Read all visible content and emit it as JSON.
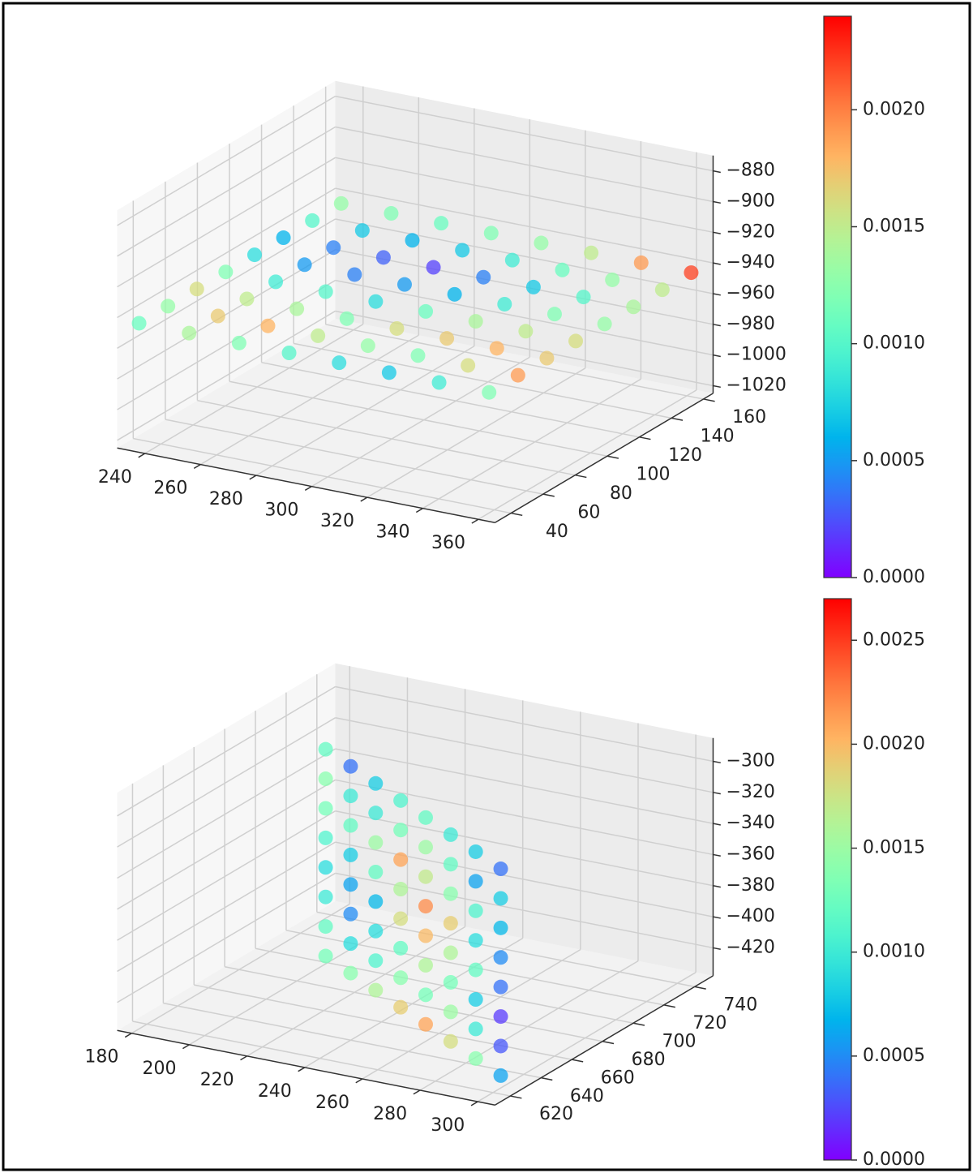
{
  "chart_data": [
    {
      "type": "scatter3d",
      "colormap": "rainbow",
      "xlim": [
        230,
        366
      ],
      "ylim": [
        30,
        166
      ],
      "zlim": [
        -1025,
        -870
      ],
      "xticks": [
        240,
        260,
        280,
        300,
        320,
        340,
        360
      ],
      "yticks": [
        40,
        60,
        80,
        100,
        120,
        140,
        160
      ],
      "zticks": [
        {
          "value": -880,
          "label": "−880"
        },
        {
          "value": -900,
          "label": "−900"
        },
        {
          "value": -920,
          "label": "−920"
        },
        {
          "value": -940,
          "label": "−940"
        },
        {
          "value": -960,
          "label": "−960"
        },
        {
          "value": -980,
          "label": "−980"
        },
        {
          "value": -1000,
          "label": "−1000"
        },
        {
          "value": -1020,
          "label": "−1020"
        }
      ],
      "clim": [
        0,
        0.0024
      ],
      "cticks": [
        {
          "value": 0,
          "label": "0.0000"
        },
        {
          "value": 0.0005,
          "label": "0.0005"
        },
        {
          "value": 0.001,
          "label": "0.0010"
        },
        {
          "value": 0.0015,
          "label": "0.0015"
        },
        {
          "value": 0.002,
          "label": "0.0020"
        }
      ],
      "x": [
        235,
        235,
        235,
        235,
        235,
        235,
        235,
        235,
        253,
        253,
        253,
        253,
        253,
        253,
        253,
        253,
        271,
        271,
        271,
        271,
        271,
        271,
        271,
        271,
        289,
        289,
        289,
        289,
        289,
        289,
        289,
        289,
        307,
        307,
        307,
        307,
        307,
        307,
        307,
        307,
        325,
        325,
        325,
        325,
        325,
        325,
        325,
        325,
        343,
        343,
        343,
        343,
        343,
        343,
        343,
        343,
        361,
        361,
        361,
        361,
        361,
        361,
        361,
        361
      ],
      "y": [
        35,
        53,
        71,
        89,
        107,
        125,
        143,
        161,
        35,
        53,
        71,
        89,
        107,
        125,
        143,
        161,
        35,
        53,
        71,
        89,
        107,
        125,
        143,
        161,
        35,
        53,
        71,
        89,
        107,
        125,
        143,
        161,
        35,
        53,
        71,
        89,
        107,
        125,
        143,
        161,
        35,
        53,
        71,
        89,
        107,
        125,
        143,
        161,
        35,
        53,
        71,
        89,
        107,
        125,
        143,
        161,
        35,
        53,
        71,
        89,
        107,
        125,
        143,
        161
      ],
      "z": [
        -945,
        -945,
        -945,
        -945,
        -945,
        -945,
        -945,
        -945,
        -945,
        -945,
        -945,
        -945,
        -945,
        -945,
        -945,
        -945,
        -945,
        -945,
        -945,
        -945,
        -945,
        -945,
        -945,
        -945,
        -945,
        -945,
        -945,
        -945,
        -945,
        -945,
        -945,
        -945,
        -945,
        -945,
        -945,
        -945,
        -945,
        -945,
        -945,
        -945,
        -945,
        -945,
        -945,
        -945,
        -945,
        -945,
        -945,
        -945,
        -945,
        -945,
        -945,
        -945,
        -945,
        -945,
        -945,
        -945,
        -945,
        -945,
        -945,
        -945,
        -945,
        -945,
        -945,
        -945
      ],
      "c": [
        0.0011,
        0.0013,
        0.0016,
        0.0012,
        0.0008,
        0.0006,
        0.001,
        0.0013,
        0.0014,
        0.0017,
        0.0015,
        0.0009,
        0.0005,
        0.0004,
        0.0007,
        0.0012,
        0.0012,
        0.0018,
        0.0014,
        0.001,
        0.0004,
        0.0003,
        0.0006,
        0.0011,
        0.001,
        0.0015,
        0.0012,
        0.0008,
        0.0005,
        0.0002,
        0.0007,
        0.0012,
        0.0008,
        0.0013,
        0.0016,
        0.0011,
        0.0006,
        0.0004,
        0.0009,
        0.0013,
        0.0007,
        0.0012,
        0.0017,
        0.0014,
        0.0009,
        0.0007,
        0.0011,
        0.0015,
        0.0009,
        0.0016,
        0.0018,
        0.0015,
        0.0012,
        0.001,
        0.0013,
        0.0019,
        0.0012,
        0.0019,
        0.0017,
        0.0016,
        0.0013,
        0.0014,
        0.0015,
        0.0022
      ]
    },
    {
      "type": "scatter3d",
      "colormap": "rainbow",
      "xlim": [
        175,
        306
      ],
      "ylim": [
        610,
        752
      ],
      "zlim": [
        -438,
        -285
      ],
      "xticks": [
        180,
        200,
        220,
        240,
        260,
        280,
        300
      ],
      "yticks": [
        620,
        640,
        660,
        680,
        700,
        720,
        740
      ],
      "zticks": [
        {
          "value": -300,
          "label": "−300"
        },
        {
          "value": -320,
          "label": "−320"
        },
        {
          "value": -340,
          "label": "−340"
        },
        {
          "value": -360,
          "label": "−360"
        },
        {
          "value": -380,
          "label": "−380"
        },
        {
          "value": -400,
          "label": "−400"
        },
        {
          "value": -420,
          "label": "−420"
        }
      ],
      "clim": [
        0,
        0.0027
      ],
      "cticks": [
        {
          "value": 0,
          "label": "0.0000"
        },
        {
          "value": 0.0005,
          "label": "0.0005"
        },
        {
          "value": 0.001,
          "label": "0.0010"
        },
        {
          "value": 0.0015,
          "label": "0.0015"
        },
        {
          "value": 0.002,
          "label": "0.0020"
        },
        {
          "value": 0.0025,
          "label": "0.0025"
        }
      ],
      "x": [
        300,
        300,
        300,
        300,
        300,
        300,
        300,
        300,
        286,
        286,
        286,
        286,
        286,
        286,
        286,
        286,
        272,
        272,
        272,
        272,
        272,
        272,
        272,
        272,
        258,
        258,
        258,
        258,
        258,
        258,
        258,
        258,
        244,
        244,
        244,
        244,
        244,
        244,
        244,
        244,
        230,
        230,
        230,
        230,
        230,
        230,
        230,
        230,
        216,
        216,
        216,
        216,
        216,
        216,
        216,
        216,
        202,
        202,
        202,
        202,
        202,
        202,
        202,
        202
      ],
      "y": [
        625,
        625,
        625,
        625,
        625,
        625,
        625,
        625,
        635,
        635,
        635,
        635,
        635,
        635,
        635,
        635,
        645,
        645,
        645,
        645,
        645,
        645,
        645,
        645,
        655,
        655,
        655,
        655,
        655,
        655,
        655,
        655,
        665,
        665,
        665,
        665,
        665,
        665,
        665,
        665,
        675,
        675,
        675,
        675,
        675,
        675,
        675,
        675,
        685,
        685,
        685,
        685,
        685,
        685,
        685,
        685,
        695,
        695,
        695,
        695,
        695,
        695,
        695,
        695
      ],
      "z": [
        -430,
        -411,
        -392,
        -373,
        -354,
        -335,
        -316,
        -297,
        -430,
        -411,
        -392,
        -373,
        -354,
        -335,
        -316,
        -297,
        -430,
        -411,
        -392,
        -373,
        -354,
        -335,
        -316,
        -297,
        -430,
        -411,
        -392,
        -373,
        -354,
        -335,
        -316,
        -297,
        -430,
        -411,
        -392,
        -373,
        -354,
        -335,
        -316,
        -297,
        -430,
        -411,
        -392,
        -373,
        -354,
        -335,
        -316,
        -297,
        -430,
        -411,
        -392,
        -373,
        -354,
        -335,
        -316,
        -297,
        -430,
        -411,
        -392,
        -373,
        -354,
        -335,
        -316,
        -297
      ],
      "c": [
        0.0006,
        0.0003,
        0.0002,
        0.0004,
        0.0005,
        0.0007,
        0.0008,
        0.0004,
        0.0014,
        0.001,
        0.0008,
        0.0012,
        0.0009,
        0.0011,
        0.0006,
        0.0008,
        0.0018,
        0.0015,
        0.0013,
        0.0016,
        0.0019,
        0.0014,
        0.0012,
        0.001,
        0.0021,
        0.0013,
        0.0016,
        0.002,
        0.0022,
        0.0017,
        0.0015,
        0.0012,
        0.0019,
        0.0014,
        0.0012,
        0.0018,
        0.0016,
        0.0021,
        0.0013,
        0.0011,
        0.0016,
        0.0011,
        0.0009,
        0.0007,
        0.0012,
        0.0015,
        0.001,
        0.0008,
        0.0014,
        0.0009,
        0.0005,
        0.0006,
        0.0008,
        0.0012,
        0.001,
        0.0004,
        0.0013,
        0.0012,
        0.001,
        0.0009,
        0.0011,
        0.0013,
        0.0014,
        0.0012
      ]
    }
  ]
}
